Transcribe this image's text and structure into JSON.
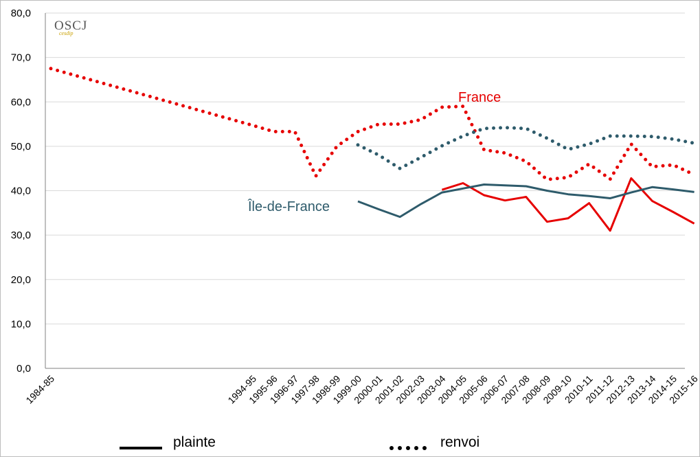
{
  "logo": {
    "main": "OSCJ",
    "sub": "cesdip"
  },
  "legend": {
    "plainte_label": "plainte",
    "renvoi_label": "renvoi"
  },
  "colors": {
    "france": "#e60000",
    "idf": "#2e5b6b",
    "grid": "#d9d9d9",
    "axis": "#808080"
  },
  "chart_data": {
    "type": "line",
    "categories": [
      "1984-85",
      "1994-95",
      "1995-96",
      "1996-97",
      "1997-98",
      "1998-99",
      "1999-00",
      "2000-01",
      "2001-02",
      "2002-03",
      "2003-04",
      "2004-05",
      "2005-06",
      "2006-07",
      "2007-08",
      "2008-09",
      "2009-10",
      "2010-11",
      "2011-12",
      "2012-13",
      "2013-14",
      "2014-15",
      "2015-16"
    ],
    "ylim": [
      0,
      80
    ],
    "yticks": [
      "0,0",
      "10,0",
      "20,0",
      "30,0",
      "40,0",
      "50,0",
      "60,0",
      "70,0",
      "80,0"
    ],
    "grid": true,
    "series": [
      {
        "name": "France",
        "kind": "renvoi",
        "region": "france",
        "values": [
          67.5,
          54.7,
          53.3,
          53.3,
          43.3,
          50.0,
          53.3,
          55.0,
          55.0,
          56.0,
          58.8,
          59.0,
          49.2,
          48.5,
          46.6,
          42.5,
          43.0,
          46.0,
          42.6,
          50.5,
          45.4,
          45.8,
          43.6
        ]
      },
      {
        "name": "Île-de-France",
        "kind": "renvoi",
        "region": "idf",
        "values": [
          null,
          null,
          null,
          null,
          null,
          null,
          50.3,
          48.0,
          45.0,
          47.5,
          50.1,
          52.3,
          54.0,
          54.2,
          54.0,
          51.8,
          49.3,
          50.5,
          52.3,
          52.3,
          52.2,
          51.6,
          50.7
        ]
      },
      {
        "kind": "plainte",
        "region": "france",
        "values": [
          null,
          null,
          null,
          null,
          null,
          null,
          null,
          null,
          null,
          null,
          40.2,
          41.7,
          39.0,
          37.8,
          38.6,
          33.0,
          33.8,
          37.2,
          31.0,
          42.8,
          37.7,
          35.2,
          32.6
        ]
      },
      {
        "kind": "plainte",
        "region": "idf",
        "values": [
          null,
          null,
          null,
          null,
          null,
          null,
          37.6,
          35.8,
          34.1,
          37.0,
          39.6,
          40.5,
          41.4,
          41.2,
          41.0,
          40.0,
          39.2,
          38.8,
          38.3,
          39.6,
          40.8,
          40.3,
          39.7
        ]
      }
    ]
  }
}
